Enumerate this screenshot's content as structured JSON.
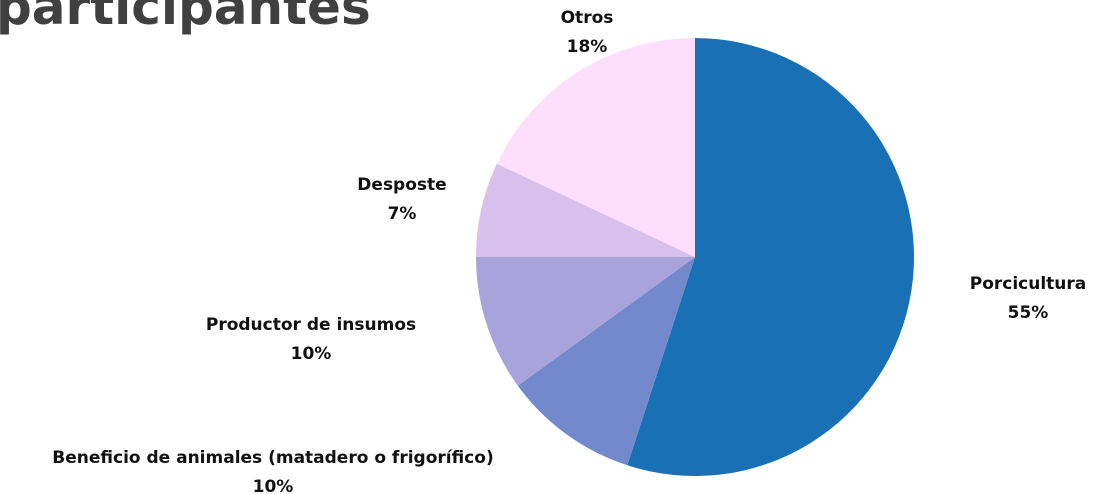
{
  "chart_data": {
    "type": "pie",
    "title": "participantes",
    "categories": [
      "Porcicultura",
      "Beneficio de animales (matadero o frigorífico)",
      "Productor de insumos",
      "Desposte",
      "Otros"
    ],
    "values": [
      55,
      10,
      10,
      7,
      18
    ],
    "value_labels": [
      "55%",
      "10%",
      "10%",
      "7%",
      "18%"
    ],
    "colors": [
      "#1a70b5",
      "#7289cc",
      "#a9a3dc",
      "#d9c0ec",
      "#fddefd"
    ]
  }
}
